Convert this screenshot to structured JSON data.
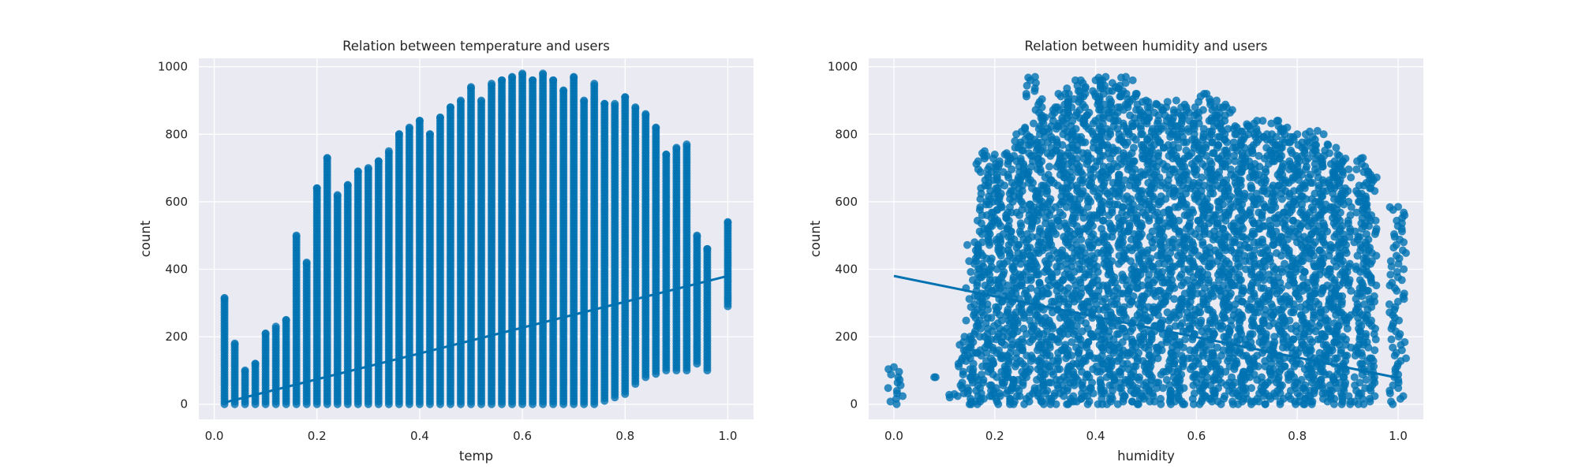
{
  "chart_data": [
    {
      "type": "scatter",
      "title": "Relation between temperature and users",
      "xlabel": "temp",
      "ylabel": "count",
      "xlim": [
        -0.03,
        1.05
      ],
      "ylim": [
        -45,
        1025
      ],
      "xticks": [
        0.0,
        0.2,
        0.4,
        0.6,
        0.8,
        1.0
      ],
      "xtick_labels": [
        "0.0",
        "0.2",
        "0.4",
        "0.6",
        "0.8",
        "1.0"
      ],
      "yticks": [
        0,
        200,
        400,
        600,
        800,
        1000
      ],
      "ytick_labels": [
        "0",
        "200",
        "400",
        "600",
        "800",
        "1000"
      ],
      "grid": true,
      "x_distinct_values": [
        0.02,
        0.04,
        0.06,
        0.08,
        0.1,
        0.12,
        0.14,
        0.16,
        0.18,
        0.2,
        0.22,
        0.24,
        0.26,
        0.28,
        0.3,
        0.32,
        0.34,
        0.36,
        0.38,
        0.4,
        0.42,
        0.44,
        0.46,
        0.48,
        0.5,
        0.52,
        0.54,
        0.56,
        0.58,
        0.6,
        0.62,
        0.64,
        0.66,
        0.68,
        0.7,
        0.72,
        0.74,
        0.76,
        0.78,
        0.8,
        0.82,
        0.84,
        0.86,
        0.88,
        0.9,
        0.92,
        0.94,
        0.96,
        1.0
      ],
      "y_max_per_x": [
        315,
        180,
        100,
        120,
        210,
        230,
        250,
        500,
        420,
        640,
        730,
        620,
        650,
        690,
        700,
        720,
        750,
        800,
        820,
        840,
        800,
        850,
        880,
        900,
        940,
        900,
        950,
        960,
        970,
        980,
        960,
        980,
        960,
        930,
        970,
        900,
        950,
        890,
        890,
        910,
        880,
        860,
        820,
        740,
        760,
        770,
        500,
        460,
        540
      ],
      "y_min_per_x": [
        0,
        0,
        0,
        0,
        0,
        0,
        0,
        0,
        0,
        0,
        0,
        0,
        0,
        0,
        0,
        0,
        0,
        0,
        0,
        0,
        0,
        0,
        0,
        0,
        0,
        0,
        0,
        0,
        0,
        0,
        0,
        0,
        0,
        0,
        0,
        0,
        0,
        10,
        20,
        30,
        60,
        80,
        90,
        100,
        100,
        100,
        120,
        100,
        290
      ],
      "regression": {
        "x": [
          0.02,
          1.0
        ],
        "y": [
          5,
          380
        ]
      },
      "color": "#0072b2"
    },
    {
      "type": "scatter",
      "title": "Relation between humidity and users",
      "xlabel": "humidity",
      "ylabel": "count",
      "xlim": [
        -0.05,
        1.05
      ],
      "ylim": [
        -45,
        1025
      ],
      "xticks": [
        0.0,
        0.2,
        0.4,
        0.6,
        0.8,
        1.0
      ],
      "xtick_labels": [
        "0.0",
        "0.2",
        "0.4",
        "0.6",
        "0.8",
        "1.0"
      ],
      "yticks": [
        0,
        200,
        400,
        600,
        800,
        1000
      ],
      "ytick_labels": [
        "0",
        "200",
        "400",
        "600",
        "800",
        "1000"
      ],
      "grid": true,
      "x_distinct_values": [
        0.0,
        0.08,
        0.12,
        0.14,
        0.16,
        0.18,
        0.2,
        0.22,
        0.24,
        0.26,
        0.28,
        0.3,
        0.32,
        0.34,
        0.36,
        0.38,
        0.4,
        0.42,
        0.44,
        0.46,
        0.48,
        0.5,
        0.52,
        0.54,
        0.56,
        0.58,
        0.6,
        0.62,
        0.64,
        0.66,
        0.68,
        0.7,
        0.72,
        0.74,
        0.76,
        0.78,
        0.8,
        0.82,
        0.84,
        0.86,
        0.88,
        0.89,
        0.93,
        0.94,
        1.0
      ],
      "y_max_per_x": [
        110,
        80,
        30,
        200,
        480,
        750,
        740,
        740,
        780,
        820,
        970,
        850,
        880,
        920,
        960,
        940,
        960,
        970,
        940,
        970,
        920,
        900,
        890,
        880,
        900,
        880,
        860,
        920,
        900,
        880,
        820,
        830,
        840,
        800,
        840,
        820,
        800,
        780,
        810,
        770,
        740,
        720,
        730,
        690,
        585
      ],
      "y_min_per_x": [
        0,
        80,
        20,
        0,
        0,
        0,
        0,
        0,
        0,
        0,
        0,
        0,
        0,
        0,
        0,
        0,
        0,
        0,
        0,
        0,
        0,
        0,
        0,
        0,
        0,
        0,
        0,
        0,
        0,
        0,
        0,
        0,
        0,
        0,
        0,
        0,
        0,
        0,
        0,
        0,
        0,
        0,
        0,
        0,
        0
      ],
      "regression": {
        "x": [
          0.0,
          1.0
        ],
        "y": [
          380,
          78
        ]
      },
      "color": "#0072b2"
    }
  ],
  "colors": {
    "axes_background": "#eaeaf2",
    "grid": "#ffffff",
    "marker": "#0072b2",
    "regression_line": "#0072b2",
    "text": "#262626"
  }
}
